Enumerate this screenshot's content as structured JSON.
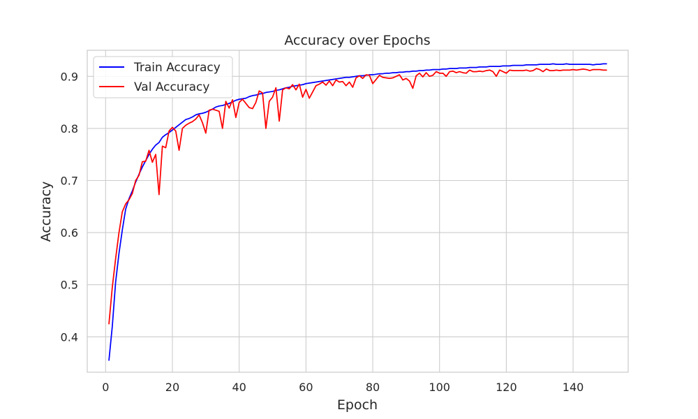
{
  "chart_data": {
    "type": "line",
    "title": "Accuracy over Epochs",
    "xlabel": "Epoch",
    "ylabel": "Accuracy",
    "xlim": [
      -5.5,
      156.5
    ],
    "ylim": [
      0.332,
      0.95
    ],
    "xticks": [
      0,
      20,
      40,
      60,
      80,
      100,
      120,
      140
    ],
    "yticks": [
      0.4,
      0.5,
      0.6,
      0.7,
      0.8,
      0.9
    ],
    "grid": true,
    "legend_position": "upper-left",
    "series": [
      {
        "name": "Train Accuracy",
        "color": "#0000ff",
        "x": [
          1,
          2,
          3,
          4,
          5,
          6,
          7,
          8,
          9,
          10,
          11,
          12,
          13,
          14,
          15,
          16,
          17,
          18,
          19,
          20,
          21,
          22,
          23,
          24,
          25,
          26,
          27,
          28,
          29,
          30,
          31,
          32,
          33,
          34,
          35,
          36,
          37,
          38,
          39,
          40,
          41,
          42,
          43,
          44,
          45,
          46,
          47,
          48,
          49,
          50,
          51,
          52,
          53,
          54,
          55,
          56,
          57,
          58,
          59,
          60,
          61,
          62,
          63,
          64,
          65,
          66,
          67,
          68,
          69,
          70,
          71,
          72,
          73,
          74,
          75,
          76,
          77,
          78,
          79,
          80,
          81,
          82,
          83,
          84,
          85,
          86,
          87,
          88,
          89,
          90,
          91,
          92,
          93,
          94,
          95,
          96,
          97,
          98,
          99,
          100,
          101,
          102,
          103,
          104,
          105,
          106,
          107,
          108,
          109,
          110,
          111,
          112,
          113,
          114,
          115,
          116,
          117,
          118,
          119,
          120,
          121,
          122,
          123,
          124,
          125,
          126,
          127,
          128,
          129,
          130,
          131,
          132,
          133,
          134,
          135,
          136,
          137,
          138,
          139,
          140,
          141,
          142,
          143,
          144,
          145,
          146,
          147,
          148,
          149,
          150
        ],
        "y": [
          0.355,
          0.42,
          0.505,
          0.56,
          0.605,
          0.645,
          0.665,
          0.68,
          0.697,
          0.712,
          0.726,
          0.738,
          0.75,
          0.76,
          0.768,
          0.773,
          0.783,
          0.788,
          0.792,
          0.797,
          0.802,
          0.807,
          0.812,
          0.817,
          0.819,
          0.822,
          0.826,
          0.828,
          0.829,
          0.831,
          0.834,
          0.837,
          0.841,
          0.843,
          0.844,
          0.846,
          0.848,
          0.851,
          0.854,
          0.856,
          0.857,
          0.858,
          0.861,
          0.863,
          0.864,
          0.866,
          0.867,
          0.869,
          0.87,
          0.871,
          0.873,
          0.874,
          0.876,
          0.878,
          0.879,
          0.881,
          0.882,
          0.883,
          0.884,
          0.886,
          0.887,
          0.888,
          0.889,
          0.89,
          0.891,
          0.892,
          0.893,
          0.894,
          0.895,
          0.896,
          0.897,
          0.898,
          0.898,
          0.899,
          0.9,
          0.901,
          0.901,
          0.902,
          0.903,
          0.903,
          0.904,
          0.905,
          0.905,
          0.906,
          0.906,
          0.907,
          0.907,
          0.908,
          0.908,
          0.909,
          0.909,
          0.91,
          0.91,
          0.911,
          0.911,
          0.912,
          0.912,
          0.913,
          0.913,
          0.913,
          0.914,
          0.914,
          0.915,
          0.915,
          0.915,
          0.916,
          0.916,
          0.916,
          0.917,
          0.917,
          0.917,
          0.918,
          0.918,
          0.918,
          0.919,
          0.919,
          0.919,
          0.919,
          0.92,
          0.92,
          0.92,
          0.921,
          0.921,
          0.921,
          0.921,
          0.922,
          0.922,
          0.922,
          0.922,
          0.923,
          0.923,
          0.923,
          0.923,
          0.924,
          0.923,
          0.923,
          0.923,
          0.924,
          0.923,
          0.923,
          0.923,
          0.923,
          0.923,
          0.923,
          0.923,
          0.922,
          0.923,
          0.923,
          0.924,
          0.924
        ]
      },
      {
        "name": "Val Accuracy",
        "color": "#ff0000",
        "x": [
          1,
          2,
          3,
          4,
          5,
          6,
          7,
          8,
          9,
          10,
          11,
          12,
          13,
          14,
          15,
          16,
          17,
          18,
          19,
          20,
          21,
          22,
          23,
          24,
          25,
          26,
          27,
          28,
          29,
          30,
          31,
          32,
          33,
          34,
          35,
          36,
          37,
          38,
          39,
          40,
          41,
          42,
          43,
          44,
          45,
          46,
          47,
          48,
          49,
          50,
          51,
          52,
          53,
          54,
          55,
          56,
          57,
          58,
          59,
          60,
          61,
          62,
          63,
          64,
          65,
          66,
          67,
          68,
          69,
          70,
          71,
          72,
          73,
          74,
          75,
          76,
          77,
          78,
          79,
          80,
          81,
          82,
          83,
          84,
          85,
          86,
          87,
          88,
          89,
          90,
          91,
          92,
          93,
          94,
          95,
          96,
          97,
          98,
          99,
          100,
          101,
          102,
          103,
          104,
          105,
          106,
          107,
          108,
          109,
          110,
          111,
          112,
          113,
          114,
          115,
          116,
          117,
          118,
          119,
          120,
          121,
          122,
          123,
          124,
          125,
          126,
          127,
          128,
          129,
          130,
          131,
          132,
          133,
          134,
          135,
          136,
          137,
          138,
          139,
          140,
          141,
          142,
          143,
          144,
          145,
          146,
          147,
          148,
          149,
          150
        ],
        "y": [
          0.425,
          0.495,
          0.55,
          0.6,
          0.64,
          0.655,
          0.663,
          0.675,
          0.7,
          0.71,
          0.736,
          0.737,
          0.758,
          0.735,
          0.75,
          0.673,
          0.766,
          0.763,
          0.795,
          0.802,
          0.795,
          0.758,
          0.8,
          0.806,
          0.81,
          0.813,
          0.818,
          0.826,
          0.811,
          0.791,
          0.835,
          0.837,
          0.835,
          0.833,
          0.8,
          0.852,
          0.839,
          0.855,
          0.821,
          0.85,
          0.856,
          0.848,
          0.84,
          0.838,
          0.85,
          0.872,
          0.868,
          0.8,
          0.852,
          0.86,
          0.878,
          0.814,
          0.874,
          0.878,
          0.876,
          0.884,
          0.874,
          0.885,
          0.86,
          0.875,
          0.858,
          0.87,
          0.882,
          0.885,
          0.889,
          0.883,
          0.891,
          0.882,
          0.893,
          0.889,
          0.89,
          0.882,
          0.889,
          0.879,
          0.897,
          0.901,
          0.896,
          0.903,
          0.902,
          0.886,
          0.894,
          0.902,
          0.898,
          0.897,
          0.896,
          0.897,
          0.9,
          0.903,
          0.893,
          0.896,
          0.891,
          0.877,
          0.901,
          0.906,
          0.899,
          0.907,
          0.9,
          0.902,
          0.909,
          0.906,
          0.906,
          0.9,
          0.909,
          0.91,
          0.907,
          0.909,
          0.907,
          0.906,
          0.912,
          0.909,
          0.909,
          0.91,
          0.909,
          0.911,
          0.912,
          0.909,
          0.9,
          0.912,
          0.909,
          0.906,
          0.912,
          0.911,
          0.911,
          0.911,
          0.911,
          0.912,
          0.91,
          0.911,
          0.915,
          0.913,
          0.909,
          0.914,
          0.911,
          0.911,
          0.912,
          0.911,
          0.912,
          0.912,
          0.912,
          0.913,
          0.912,
          0.913,
          0.914,
          0.913,
          0.911,
          0.913,
          0.913,
          0.913,
          0.912,
          0.912
        ]
      }
    ]
  }
}
